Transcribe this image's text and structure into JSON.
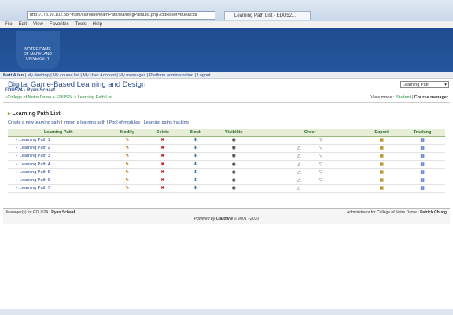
{
  "browser": {
    "address": "http://173.10.102.88/~ndm/claroline/learnPath/learningPathList.php?cidReset=true&cidi",
    "tab": "Learning Path List - EDU52...",
    "menu": [
      "File",
      "Edit",
      "View",
      "Favorites",
      "Tools",
      "Help"
    ]
  },
  "logo": [
    "NOTRE DAME",
    "OF MARYLAND",
    "UNIVERSITY"
  ],
  "user_bar": {
    "user": "Matt Allen",
    "links": [
      "My desktop",
      "My course list",
      "My User Account",
      "My messages",
      "Platform administration",
      "Logout"
    ]
  },
  "course": {
    "title": "Digital Game-Based Learning and Design",
    "subtitle": "EDU524 - Ryan Schaaf",
    "tool_select": "Learning Path"
  },
  "breadcrumb": [
    "College of Notre Dame",
    "EDU524",
    "Learning Path List"
  ],
  "view_mode": {
    "label": "View mode :",
    "student": "Student",
    "manager": "Course manager"
  },
  "section_title": "Learning Path List",
  "actions": [
    "Create a new learning path",
    "Import a learning path",
    "Pool of modules",
    "Learning paths tracking"
  ],
  "table": {
    "headers": [
      "Learning Path",
      "Modify",
      "Delete",
      "Block",
      "Visibility",
      "Order",
      "Export",
      "Tracking"
    ],
    "rows": [
      "Learning Path 1",
      "Learning Path 2",
      "Learning Path 3",
      "Learning Path 4",
      "Learning Path 5",
      "Learning Path 6",
      "Learning Path 7"
    ]
  },
  "footer": {
    "managers_label": "Manager(s) for EDU524 :",
    "manager": "Ryan Schaaf",
    "admin_label": "Administrator for College of Notre Dame :",
    "admin": "Patrick Chung",
    "powered": "Powered by",
    "claroline": "Claroline",
    "copyright": "© 2001 - 2010"
  }
}
